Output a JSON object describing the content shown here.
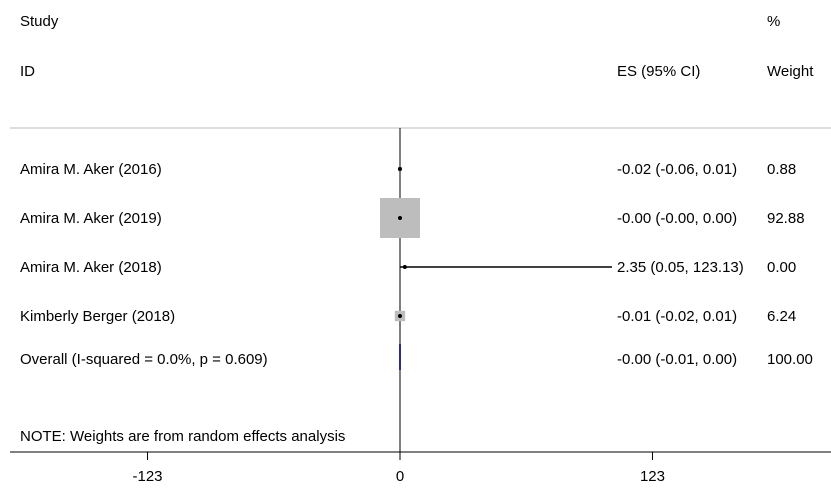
{
  "chart_data": {
    "type": "forest",
    "headers": {
      "study_line1": "Study",
      "study_line2": "ID",
      "es": "ES (95% CI)",
      "weight_line1": "%",
      "weight_line2": "Weight"
    },
    "studies": [
      {
        "label": "Amira M. Aker (2016)",
        "es": -0.02,
        "lo": -0.06,
        "hi": 0.01,
        "weight": 0.88,
        "es_text": "-0.02 (-0.06, 0.01)",
        "weight_text": "0.88"
      },
      {
        "label": "Amira M. Aker (2019)",
        "es": -0.0,
        "lo": -0.0,
        "hi": 0.0,
        "weight": 92.88,
        "es_text": "-0.00 (-0.00, 0.00)",
        "weight_text": "92.88"
      },
      {
        "label": "Amira M. Aker (2018)",
        "es": 2.35,
        "lo": 0.05,
        "hi": 123.13,
        "weight": 0.0,
        "es_text": "2.35 (0.05, 123.13)",
        "weight_text": "0.00"
      },
      {
        "label": "Kimberly Berger (2018)",
        "es": -0.01,
        "lo": -0.02,
        "hi": 0.01,
        "weight": 6.24,
        "es_text": "-0.01 (-0.02, 0.01)",
        "weight_text": "6.24"
      }
    ],
    "overall": {
      "label": "Overall  (I-squared = 0.0%, p = 0.609)",
      "es": -0.0,
      "lo": -0.01,
      "hi": 0.0,
      "es_text": "-0.00 (-0.01, 0.00)",
      "weight_text": "100.00"
    },
    "note": "NOTE: Weights are from random effects analysis",
    "xaxis": {
      "range": [
        -190,
        190
      ],
      "ticks": [
        -123,
        0,
        123
      ],
      "tick_labels": [
        "-123",
        "0",
        "123"
      ],
      "null_line": 0
    },
    "colors": {
      "box": "#bdbdbd",
      "line": "#000000",
      "overall_diamond": "#2b2b8f",
      "separator": "#bbbbbb"
    }
  }
}
